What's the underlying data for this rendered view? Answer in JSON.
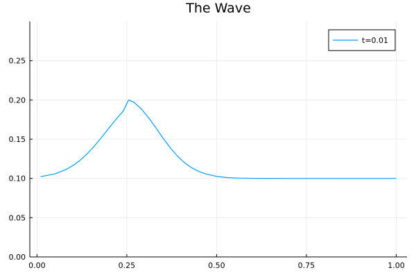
{
  "chart_data": {
    "type": "line",
    "title": "The Wave",
    "xlabel": "",
    "ylabel": "",
    "xlim": [
      -0.02,
      1.03
    ],
    "ylim": [
      0.0,
      0.3
    ],
    "xticks": [
      "0.00",
      "0.25",
      "0.50",
      "0.75",
      "1.00"
    ],
    "yticks": [
      "0.00",
      "0.05",
      "0.10",
      "0.15",
      "0.20",
      "0.25"
    ],
    "grid": true,
    "legend_position": "top-right",
    "series": [
      {
        "name": "t=0.01",
        "color": "#009af9",
        "x": [
          0.01,
          0.05,
          0.08,
          0.1,
          0.12,
          0.14,
          0.16,
          0.18,
          0.2,
          0.22,
          0.24,
          0.255,
          0.27,
          0.29,
          0.31,
          0.33,
          0.35,
          0.37,
          0.39,
          0.41,
          0.43,
          0.45,
          0.47,
          0.5,
          0.53,
          0.56,
          0.6,
          0.7,
          0.8,
          0.9,
          1.0
        ],
        "y": [
          0.1022,
          0.1058,
          0.1112,
          0.1164,
          0.1231,
          0.1315,
          0.1414,
          0.1524,
          0.164,
          0.1754,
          0.1858,
          0.2,
          0.197,
          0.1888,
          0.1778,
          0.1651,
          0.1519,
          0.1396,
          0.1289,
          0.1203,
          0.1137,
          0.109,
          0.1057,
          0.1026,
          0.101,
          0.1004,
          0.1001,
          0.1,
          0.1,
          0.1,
          0.1
        ]
      }
    ]
  }
}
